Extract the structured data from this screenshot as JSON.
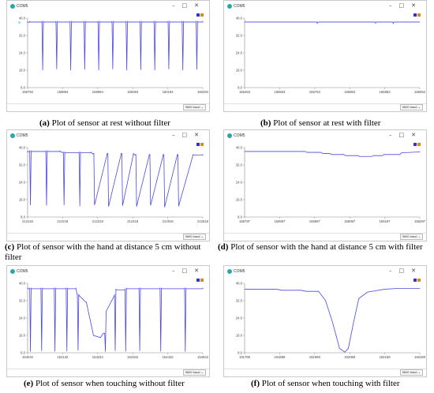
{
  "colors": {
    "trace": "#4a4adb",
    "point": "#6c6cff",
    "legend_blue": "#3333cc",
    "legend_orange": "#d98c1a",
    "axis": "#888888",
    "grid": "#e6e6e6"
  },
  "window": {
    "title": "COM5",
    "minimize_icon": "minus-icon",
    "maximize_icon": "square-icon",
    "close_icon": "close-icon",
    "baud": "9600 baud"
  },
  "panels": [
    {
      "id": "a",
      "caption_label": "(a)",
      "caption_text": "Plot of sensor at rest without filter",
      "yticks": [
        "40.0",
        "32.0",
        "24.0",
        "16.0",
        "8.0"
      ],
      "xticks": [
        "159794",
        "159894",
        "159994",
        "160094",
        "160194",
        "160294"
      ],
      "chart_data": {
        "type": "line",
        "ylim": [
          8,
          40
        ],
        "xlim": [
          159794,
          160294
        ],
        "filter": false,
        "x": [
          159794,
          159800,
          159835,
          159837,
          159839,
          159875,
          159877,
          159879,
          159915,
          159917,
          159919,
          159955,
          159957,
          159959,
          159995,
          159997,
          159999,
          160035,
          160037,
          160039,
          160075,
          160077,
          160079,
          160115,
          160117,
          160119,
          160155,
          160157,
          160159,
          160195,
          160197,
          160199,
          160235,
          160237,
          160239,
          160275,
          160277,
          160279,
          160294
        ],
        "y": [
          38,
          38.2,
          38.2,
          16,
          38.2,
          38.2,
          16.5,
          38.2,
          38.2,
          16,
          38.2,
          38.2,
          16.3,
          38.2,
          38.2,
          16,
          38.2,
          38.2,
          16.5,
          38.2,
          38.2,
          16,
          38.2,
          38.2,
          16.2,
          38.2,
          38.2,
          16,
          38.2,
          38.2,
          16.5,
          38.2,
          38.2,
          16,
          38.2,
          38.2,
          16.3,
          38.2,
          38.2
        ]
      }
    },
    {
      "id": "b",
      "caption_label": "(b)",
      "caption_text": "Plot of sensor at rest with filter",
      "yticks": [
        "40.0",
        "32.0",
        "24.0",
        "16.0",
        "8.0"
      ],
      "xticks": [
        "165453",
        "165553",
        "165753",
        "165853",
        "165953",
        "166053"
      ],
      "chart_data": {
        "type": "line",
        "ylim": [
          8,
          40
        ],
        "xlim": [
          165453,
          166053
        ],
        "filter": true,
        "x": [
          165453,
          165700,
          165702,
          165704,
          165900,
          165902,
          165904,
          165960,
          165962,
          165964,
          166053
        ],
        "y": [
          38.2,
          38.2,
          37.6,
          38.2,
          38.2,
          37.7,
          38.2,
          38.2,
          37.6,
          38.2,
          38.2
        ]
      }
    },
    {
      "id": "c",
      "caption_label": "(c)",
      "caption_text": "Plot of sensor with the hand at distance 5 cm without filter",
      "yticks": [
        "40.0",
        "32.0",
        "24.0",
        "16.0",
        "8.0"
      ],
      "xticks": [
        "212118",
        "212218",
        "212318",
        "212418",
        "212518",
        "212618"
      ],
      "chart_data": {
        "type": "line",
        "ylim": [
          8,
          40
        ],
        "xlim": [
          212118,
          212618
        ],
        "filter": false,
        "x": [
          212118,
          212124,
          212126,
          212128,
          212170,
          212172,
          212174,
          212210,
          212220,
          212222,
          212224,
          212265,
          212267,
          212269,
          212300,
          212305,
          212307,
          212309,
          212345,
          212347,
          212349,
          212385,
          212387,
          212389,
          212420,
          212425,
          212427,
          212429,
          212465,
          212467,
          212469,
          212505,
          212507,
          212509,
          212545,
          212547,
          212549,
          212590,
          212618
        ],
        "y": [
          38,
          38.2,
          13.5,
          38.2,
          38.2,
          13.3,
          38.2,
          38.2,
          37.6,
          13.5,
          37.6,
          37.6,
          13,
          37.6,
          37.6,
          37,
          37,
          13.5,
          37,
          37,
          12.8,
          37,
          37,
          13.2,
          37,
          36.5,
          36.5,
          12.8,
          36.5,
          36.5,
          13.3,
          36.5,
          36.5,
          12.5,
          36.5,
          36.5,
          13,
          36.5,
          36.5
        ]
      }
    },
    {
      "id": "d",
      "caption_label": "(d)",
      "caption_text": "Plot of sensor with the hand at distance 5 cm with filter",
      "yticks": [
        "40.0",
        "32.0",
        "24.0",
        "16.0",
        "8.0"
      ],
      "xticks": [
        "155797",
        "155897",
        "155997",
        "156097",
        "156197",
        "156297"
      ],
      "chart_data": {
        "type": "line",
        "ylim": [
          8,
          40
        ],
        "xlim": [
          155797,
          156297
        ],
        "filter": true,
        "x": [
          155797,
          155970,
          155975,
          156015,
          156020,
          156040,
          156045,
          156080,
          156085,
          156120,
          156125,
          156160,
          156165,
          156190,
          156195,
          156240,
          156245,
          156297
        ],
        "y": [
          38.2,
          38.2,
          37.8,
          37.8,
          37.3,
          37.3,
          36.8,
          36.8,
          36.3,
          36.3,
          35.9,
          35.9,
          36.3,
          36.3,
          36.8,
          36.8,
          37.6,
          38
        ]
      }
    },
    {
      "id": "e",
      "caption_label": "(e)",
      "caption_text": "Plot of sensor when touching without filter",
      "yticks": [
        "40.0",
        "32.0",
        "24.0",
        "16.0",
        "8.0"
      ],
      "xticks": [
        "154042",
        "154142",
        "154242",
        "154342",
        "154442",
        "154542"
      ],
      "chart_data": {
        "type": "line",
        "ylim": [
          8,
          40
        ],
        "xlim": [
          154042,
          154542
        ],
        "filter": false,
        "x": [
          154042,
          154048,
          154050,
          154052,
          154080,
          154082,
          154084,
          154118,
          154120,
          154122,
          154152,
          154154,
          154156,
          154180,
          154184,
          154186,
          154188,
          154210,
          154230,
          154250,
          154258,
          154262,
          154264,
          154266,
          154290,
          154292,
          154294,
          154320,
          154322,
          154324,
          154360,
          154362,
          154364,
          154420,
          154422,
          154424,
          154490,
          154492,
          154494,
          154542
        ],
        "y": [
          37.5,
          37.5,
          8.5,
          37.5,
          37.5,
          8.8,
          37.5,
          37.5,
          8.6,
          37.5,
          37.5,
          8.7,
          37.5,
          37.5,
          34.5,
          9,
          34.5,
          31,
          16,
          15,
          17,
          17,
          8.5,
          27,
          34.5,
          8.8,
          37,
          37,
          8.6,
          37.5,
          37.5,
          8.8,
          37.5,
          37.5,
          8.6,
          37.5,
          37.5,
          8.5,
          37.5,
          37.5
        ]
      }
    },
    {
      "id": "f",
      "caption_label": "(f)",
      "caption_text": "Plot of sensor when touching with filter",
      "yticks": [
        "40.0",
        "32.0",
        "24.0",
        "16.0",
        "8.0"
      ],
      "xticks": [
        "191769",
        "191869",
        "191969",
        "192069",
        "192169",
        "192269"
      ],
      "chart_data": {
        "type": "line",
        "ylim": [
          8,
          40
        ],
        "xlim": [
          191769,
          192269
        ],
        "filter": true,
        "x": [
          191769,
          191800,
          191802,
          191860,
          191875,
          191930,
          191945,
          191980,
          192000,
          192020,
          192040,
          192055,
          192065,
          192080,
          192095,
          192120,
          192140,
          192170,
          192200,
          192230,
          192269
        ],
        "y": [
          37.3,
          37.3,
          37.3,
          37.3,
          36.8,
          36.8,
          36.3,
          36.3,
          32,
          22,
          10,
          8.3,
          10,
          22,
          33,
          36,
          36.5,
          37.3,
          37.6,
          37.6,
          37.6
        ]
      }
    }
  ]
}
